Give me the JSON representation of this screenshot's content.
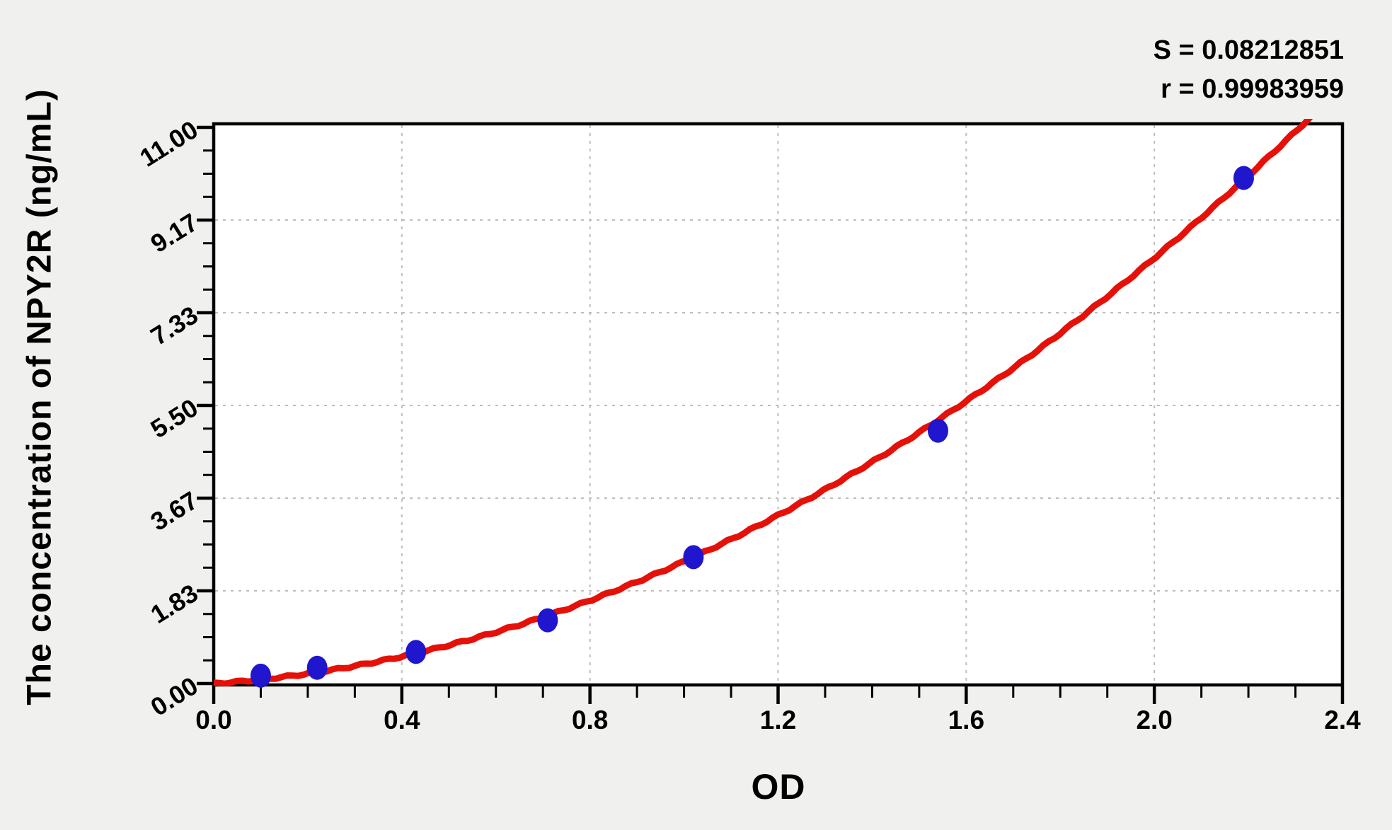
{
  "page": {
    "background": "#f0f0ee"
  },
  "chart_data": {
    "type": "scatter",
    "title": "",
    "xlabel": "OD",
    "ylabel": "The concentration of NPY2R (ng/mL)",
    "stats": {
      "s": "S = 0.08212851",
      "r": "r = 0.99983959"
    },
    "x_axis": {
      "min": 0,
      "max": 2.4,
      "major_ticks": [
        0,
        0.4,
        0.8,
        1.2,
        1.6,
        2.0,
        2.4
      ],
      "tick_labels": [
        "0.0",
        "0.4",
        "0.8",
        "1.2",
        "1.6",
        "2.0",
        "2.4"
      ],
      "minor_tick_step": 0.1
    },
    "y_axis": {
      "min": 0,
      "max": 11,
      "major_ticks": [
        0,
        1.8333,
        3.6667,
        5.5,
        7.3333,
        9.1667,
        11
      ],
      "tick_labels": [
        "0.00",
        "1.83",
        "3.67",
        "5.50",
        "7.33",
        "9.17",
        "11.00"
      ],
      "minor_ticks_between": 3
    },
    "grid": {
      "shown": true,
      "style": "dashed",
      "color": "#bdbdbd"
    },
    "series": [
      {
        "name": "standard-points",
        "type": "scatter",
        "color": "#2016cd",
        "x": [
          0.1,
          0.22,
          0.43,
          0.71,
          1.02,
          1.54,
          2.19
        ],
        "y": [
          0.156,
          0.312,
          0.625,
          1.25,
          2.5,
          5.0,
          10.0
        ]
      },
      {
        "name": "fitted-curve",
        "type": "line",
        "color": "#e51109",
        "fit": {
          "model": "conc = c1*OD + c2*OD^2",
          "c1": 0.62,
          "c2": 1.794,
          "od_range": [
            0,
            2.34
          ]
        }
      }
    ],
    "colors": {
      "axis": "#000000",
      "plot_background": "#ffffff",
      "page_background": "#f0f0ee"
    }
  }
}
